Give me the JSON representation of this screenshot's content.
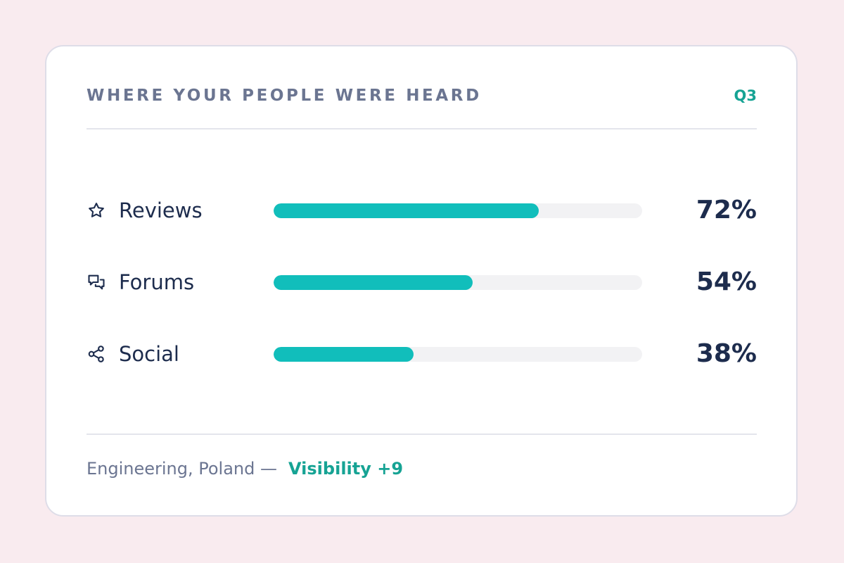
{
  "card": {
    "title": "WHERE YOUR PEOPLE WERE HEARD",
    "period": "Q3"
  },
  "rows": [
    {
      "icon": "star-icon",
      "label": "Reviews",
      "value_text": "72%",
      "fraction": 0.72
    },
    {
      "icon": "chat-bubbles-icon",
      "label": "Forums",
      "value_text": "54%",
      "fraction": 0.54
    },
    {
      "icon": "share-icon",
      "label": "Social",
      "value_text": "38%",
      "fraction": 0.38
    }
  ],
  "footer": {
    "text": "Engineering, Poland —",
    "accent": "Visibility +9"
  },
  "colors": {
    "background": "#f9ebef",
    "accent": "#16a394",
    "bar_fill": "#11bebb",
    "bar_track": "#f2f2f4",
    "text_primary": "#1d2c4d",
    "text_muted": "#6b7591"
  }
}
